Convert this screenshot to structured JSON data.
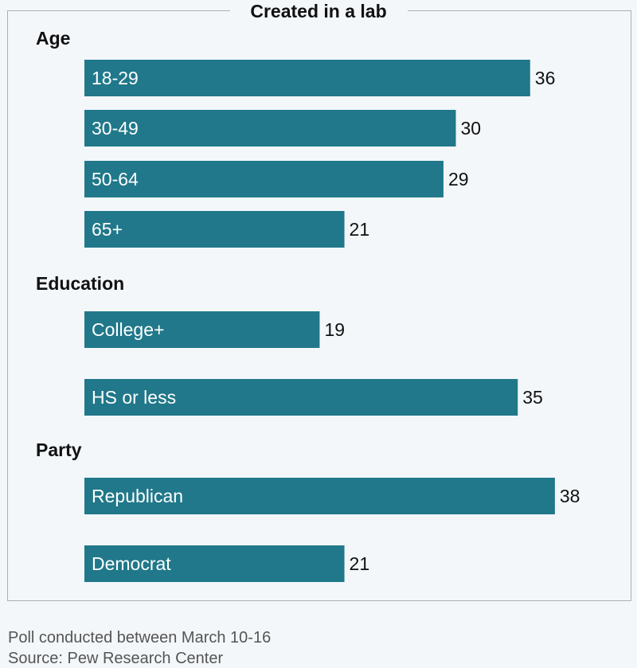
{
  "chart_data": {
    "type": "bar",
    "orientation": "horizontal",
    "title": "Created in a lab",
    "bar_color": "#20788a",
    "groups": [
      {
        "name": "Age",
        "categories": [
          "18-29",
          "30-49",
          "50-64",
          "65+"
        ],
        "values": [
          36,
          30,
          29,
          21
        ]
      },
      {
        "name": "Education",
        "categories": [
          "College+",
          "HS or less"
        ],
        "values": [
          19,
          35
        ]
      },
      {
        "name": "Party",
        "categories": [
          "Republican",
          "Democrat"
        ],
        "values": [
          38,
          21
        ]
      }
    ],
    "xlim": [
      0,
      40
    ],
    "grid": false,
    "legend": "none"
  },
  "footnotes": {
    "poll": "Poll conducted between March 10-16",
    "source": "Source: Pew Research Center"
  }
}
